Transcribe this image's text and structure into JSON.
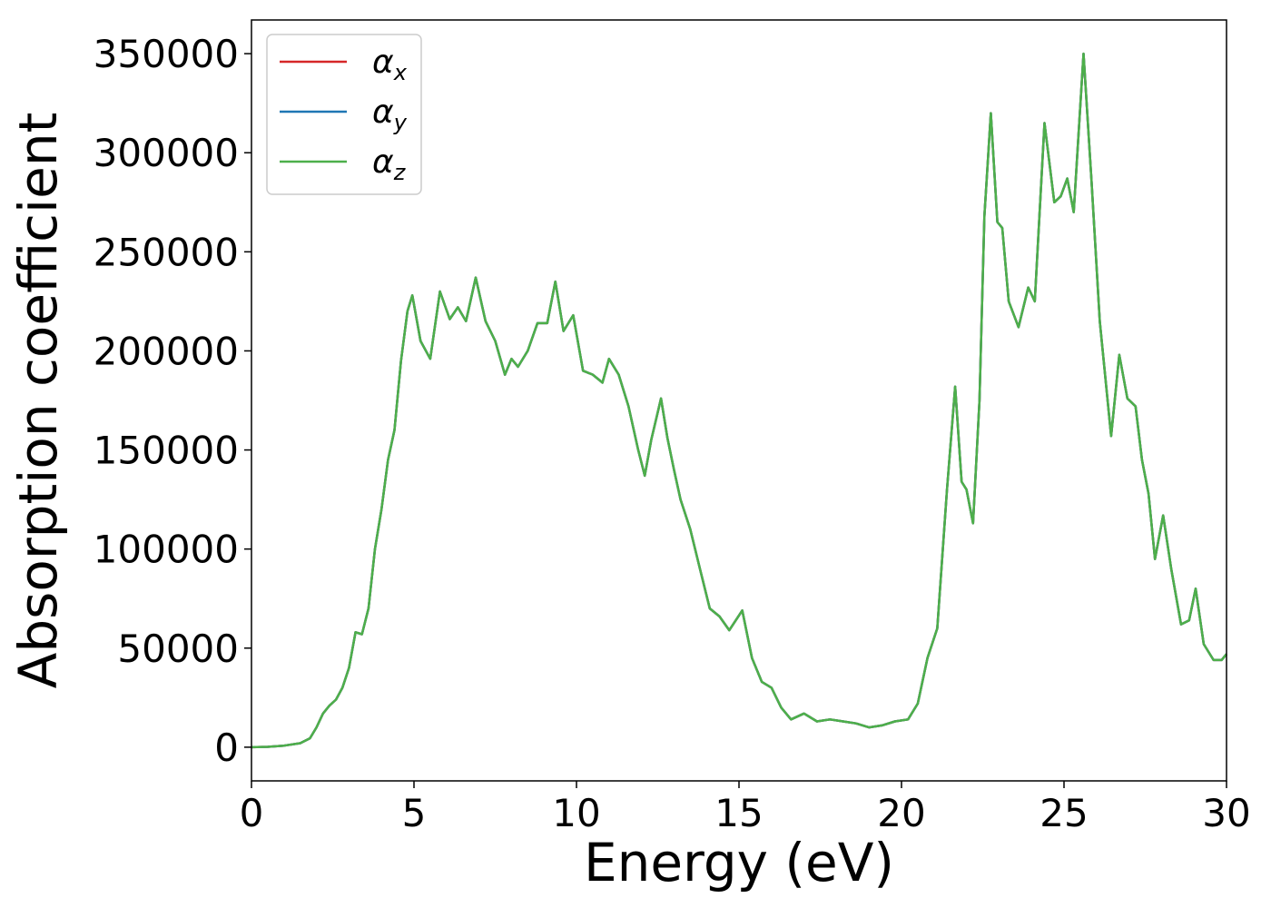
{
  "chart_data": {
    "type": "line",
    "title": "",
    "xlabel": "Energy (eV)",
    "ylabel": "Absorption coefficient",
    "xlim": [
      0,
      30
    ],
    "ylim": [
      -17000,
      367000
    ],
    "xticks": [
      0,
      5,
      10,
      15,
      20,
      25,
      30
    ],
    "yticks": [
      0,
      50000,
      100000,
      150000,
      200000,
      250000,
      300000,
      350000
    ],
    "grid": false,
    "legend_position": "top-left",
    "series": [
      {
        "name": "α",
        "subscript": "x",
        "color": "#d62728"
      },
      {
        "name": "α",
        "subscript": "y",
        "color": "#1f77b4"
      },
      {
        "name": "α",
        "subscript": "z",
        "color": "#4daf4a"
      }
    ],
    "x": [
      0,
      0.5,
      1.0,
      1.5,
      1.8,
      2.0,
      2.2,
      2.4,
      2.6,
      2.8,
      3.0,
      3.2,
      3.4,
      3.6,
      3.8,
      4.0,
      4.2,
      4.4,
      4.6,
      4.8,
      4.95,
      5.2,
      5.5,
      5.8,
      6.1,
      6.35,
      6.6,
      6.9,
      7.2,
      7.5,
      7.8,
      8.0,
      8.2,
      8.5,
      8.8,
      9.1,
      9.35,
      9.6,
      9.9,
      10.2,
      10.5,
      10.8,
      11.0,
      11.3,
      11.6,
      11.9,
      12.1,
      12.3,
      12.6,
      12.8,
      13.0,
      13.2,
      13.5,
      13.8,
      14.1,
      14.4,
      14.7,
      15.1,
      15.4,
      15.7,
      16.0,
      16.3,
      16.6,
      17.0,
      17.4,
      17.8,
      18.2,
      18.6,
      19.0,
      19.4,
      19.8,
      20.2,
      20.5,
      20.8,
      21.1,
      21.4,
      21.65,
      21.85,
      22.0,
      22.2,
      22.4,
      22.55,
      22.75,
      22.95,
      23.1,
      23.3,
      23.6,
      23.9,
      24.1,
      24.4,
      24.7,
      24.9,
      25.1,
      25.3,
      25.6,
      25.85,
      26.1,
      26.45,
      26.7,
      26.95,
      27.2,
      27.4,
      27.6,
      27.8,
      28.05,
      28.3,
      28.6,
      28.85,
      29.05,
      29.3,
      29.6,
      29.85,
      30.0
    ],
    "values": [
      0,
      200,
      800,
      2000,
      4500,
      10000,
      17000,
      21000,
      24000,
      30000,
      40000,
      58000,
      57000,
      70000,
      100000,
      120000,
      145000,
      160000,
      195000,
      220000,
      228000,
      205000,
      196000,
      230000,
      216000,
      222000,
      215000,
      237000,
      215000,
      205000,
      188000,
      196000,
      192000,
      200000,
      214000,
      214000,
      235000,
      210000,
      218000,
      190000,
      188000,
      184000,
      196000,
      188000,
      172000,
      150000,
      137000,
      155000,
      176000,
      156000,
      140000,
      125000,
      110000,
      90000,
      70000,
      66000,
      59000,
      69000,
      45000,
      33000,
      30000,
      20000,
      14000,
      17000,
      13000,
      14000,
      13000,
      12000,
      10000,
      11000,
      13000,
      14000,
      22000,
      45000,
      60000,
      130000,
      182000,
      134000,
      130000,
      113000,
      175000,
      268000,
      320000,
      265000,
      262000,
      225000,
      212000,
      232000,
      225000,
      315000,
      275000,
      278000,
      287000,
      270000,
      350000,
      285000,
      215000,
      157000,
      198000,
      176000,
      172000,
      145000,
      128000,
      95000,
      117000,
      90000,
      62000,
      64000,
      80000,
      52000,
      44000,
      44000,
      47000
    ]
  }
}
